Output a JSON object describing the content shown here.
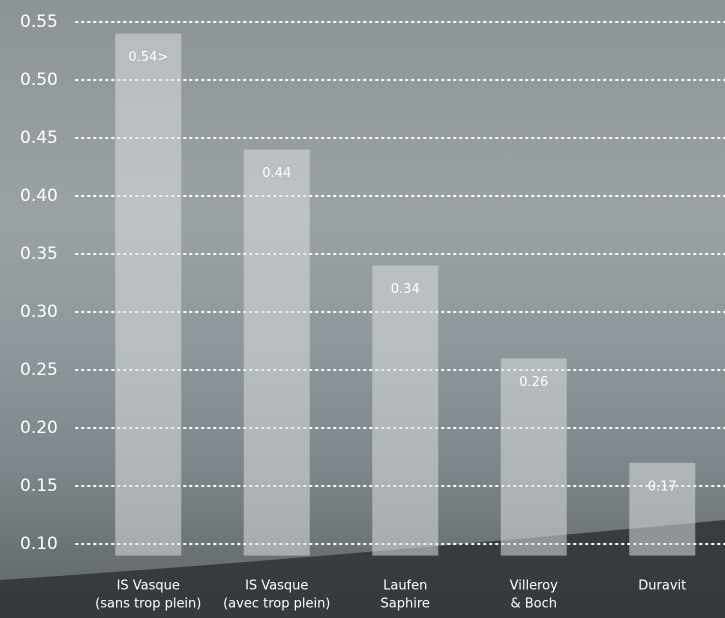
{
  "chart_data": {
    "type": "bar",
    "categories": [
      [
        "IS Vasque",
        "(sans trop plein)"
      ],
      [
        "IS Vasque",
        "(avec trop plein)"
      ],
      [
        "Laufen",
        "Saphire"
      ],
      [
        "Villeroy",
        "& Boch"
      ],
      [
        "Duravit"
      ]
    ],
    "values": [
      0.54,
      0.44,
      0.34,
      0.26,
      0.17
    ],
    "value_labels": [
      "0.54>",
      "0.44",
      "0.34",
      "0.26",
      "0.17"
    ],
    "color": "#d9dcdf",
    "ylim": [
      0.09,
      0.55
    ],
    "yticks": [
      {
        "value": 0.1,
        "label": "0.10"
      },
      0.15,
      {
        "value": 0.2,
        "label": "0.20"
      },
      0.25,
      {
        "value": 0.3,
        "label": "0.30"
      },
      0.35,
      {
        "value": 0.4,
        "label": "0.40"
      },
      0.45,
      {
        "value": 0.5,
        "label": "0.50"
      },
      0.55
    ],
    "grid": true
  }
}
